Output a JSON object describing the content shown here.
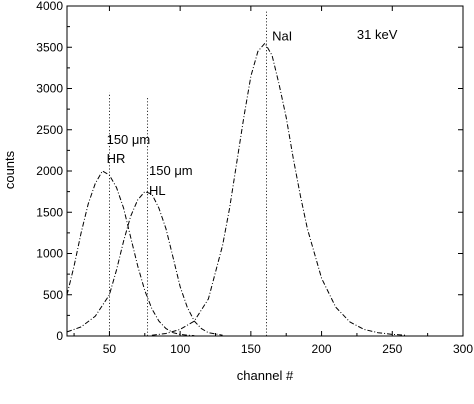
{
  "chart_data": {
    "type": "line",
    "title": "",
    "xlabel": "channel #",
    "ylabel": "counts",
    "xlim": [
      20,
      300
    ],
    "ylim": [
      0,
      4000
    ],
    "xticks": [
      50,
      100,
      150,
      200,
      250,
      300
    ],
    "yticks": [
      0,
      500,
      1000,
      1500,
      2000,
      2500,
      3000,
      3500,
      4000
    ],
    "grid": false,
    "legend": "none",
    "series": [
      {
        "x": [
          20,
          25,
          30,
          35,
          40,
          45,
          50,
          55,
          60,
          65,
          70,
          75,
          80,
          85,
          90,
          95,
          100,
          105,
          110
        ],
        "y": [
          500,
          850,
          1250,
          1600,
          1850,
          2000,
          1950,
          1800,
          1550,
          1200,
          850,
          550,
          330,
          180,
          90,
          40,
          20,
          10,
          5
        ]
      },
      {
        "x": [
          20,
          30,
          40,
          50,
          55,
          60,
          65,
          70,
          75,
          80,
          85,
          90,
          95,
          100,
          105,
          110,
          115,
          120,
          130
        ],
        "y": [
          50,
          110,
          240,
          500,
          800,
          1150,
          1450,
          1650,
          1750,
          1720,
          1550,
          1300,
          950,
          600,
          350,
          180,
          90,
          40,
          10
        ]
      },
      {
        "x": [
          80,
          90,
          100,
          110,
          120,
          130,
          135,
          140,
          145,
          150,
          155,
          160,
          165,
          170,
          175,
          180,
          185,
          190,
          200,
          210,
          220,
          230,
          240,
          250,
          260
        ],
        "y": [
          10,
          30,
          80,
          180,
          450,
          1100,
          1550,
          2100,
          2650,
          3150,
          3450,
          3550,
          3400,
          3050,
          2650,
          2150,
          1700,
          1300,
          700,
          350,
          170,
          80,
          40,
          20,
          10
        ]
      }
    ],
    "markers": [
      {
        "x": 50,
        "y_top": 2950
      },
      {
        "x": 77,
        "y_top": 2900
      },
      {
        "x": 161,
        "y_top": 3950
      }
    ],
    "annotations": [
      {
        "text": "150 μm",
        "x": 48,
        "y": 2330
      },
      {
        "text": "HR",
        "x": 48,
        "y": 2100
      },
      {
        "text": "150 μm",
        "x": 78,
        "y": 1950
      },
      {
        "text": "HL",
        "x": 78,
        "y": 1710
      },
      {
        "text": "NaI",
        "x": 165,
        "y": 3580
      },
      {
        "text": "31 keV",
        "x": 225,
        "y": 3600
      }
    ]
  }
}
